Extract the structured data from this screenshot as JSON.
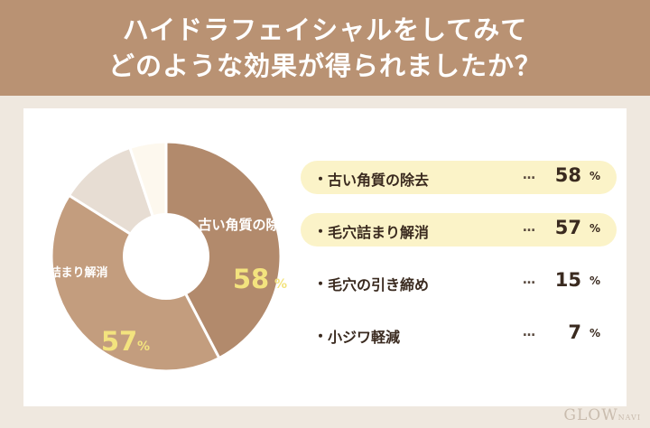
{
  "header": {
    "line1": "ハイドラフェイシャルをしてみて",
    "line2": "どのような効果が得られましたか？"
  },
  "colors": {
    "header_bg": "#b99273",
    "slice_dark": "#b28a6c",
    "slice_mid": "#c39d7e",
    "slice_light": "#e7ddd3",
    "slice_pale": "#fdf8ee",
    "highlight_row": "#fbf3c8",
    "value_yellow": "#f3e37e"
  },
  "donut_labels": {
    "slice1_label": "古い角質の除去",
    "slice1_value": "58",
    "slice2_label": "毛穴詰まり解消",
    "slice2_value": "57",
    "percent_sign": "%"
  },
  "chart_data": {
    "type": "pie",
    "subtype": "donut",
    "unit": "%",
    "categories": [
      "古い角質の除去",
      "毛穴詰まり解消",
      "毛穴の引き締め",
      "小ジワ軽減"
    ],
    "values": [
      58,
      57,
      15,
      7
    ]
  },
  "legend": {
    "items": [
      {
        "bullet": "・",
        "label": "古い角質の除去",
        "ellipsis": "…",
        "value": "58",
        "unit": "%"
      },
      {
        "bullet": "・",
        "label": "毛穴詰まり解消",
        "ellipsis": "…",
        "value": "57",
        "unit": "%"
      },
      {
        "bullet": "・",
        "label": "毛穴の引き締め",
        "ellipsis": "…",
        "value": "15",
        "unit": "%"
      },
      {
        "bullet": "・",
        "label": "小ジワ軽減",
        "ellipsis": "…",
        "value": "7",
        "unit": "%"
      }
    ]
  },
  "watermark": {
    "text": "GLOW",
    "sub": "NAVI"
  }
}
